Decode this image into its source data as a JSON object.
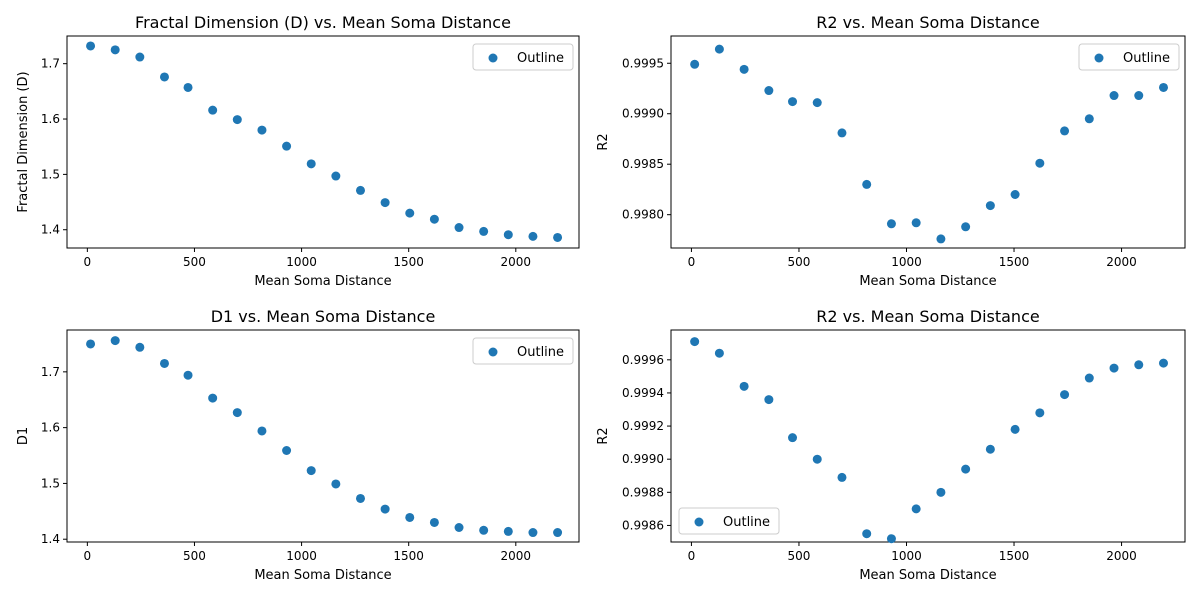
{
  "colors": {
    "marker": "#1f77b4",
    "axes": "#000000",
    "legend_edge": "#cccccc"
  },
  "chart_data": [
    {
      "type": "scatter",
      "title": "Fractal Dimension (D) vs. Mean Soma Distance",
      "xlabel": "Mean Soma Distance",
      "ylabel": "Fractal Dimension (D)",
      "xlim": [
        -95,
        2295
      ],
      "ylim": [
        1.367,
        1.75
      ],
      "xticks": [
        0,
        500,
        1000,
        1500,
        2000
      ],
      "yticks": [
        1.4,
        1.5,
        1.6,
        1.7
      ],
      "ytick_labels": [
        "1.4",
        "1.5",
        "1.6",
        "1.7"
      ],
      "legend_position": "upper-right",
      "series": [
        {
          "name": "Outline",
          "x": [
            15,
            130,
            245,
            360,
            470,
            585,
            700,
            815,
            930,
            1045,
            1160,
            1275,
            1390,
            1505,
            1620,
            1735,
            1850,
            1965,
            2080,
            2195
          ],
          "y": [
            1.732,
            1.725,
            1.712,
            1.676,
            1.657,
            1.616,
            1.599,
            1.58,
            1.551,
            1.519,
            1.497,
            1.471,
            1.449,
            1.43,
            1.419,
            1.404,
            1.397,
            1.391,
            1.388,
            1.386
          ]
        }
      ]
    },
    {
      "type": "scatter",
      "title": "R2 vs. Mean Soma Distance",
      "xlabel": "Mean Soma Distance",
      "ylabel": "R2",
      "xlim": [
        -95,
        2295
      ],
      "ylim": [
        0.99767,
        0.99977
      ],
      "xticks": [
        0,
        500,
        1000,
        1500,
        2000
      ],
      "yticks": [
        0.998,
        0.9985,
        0.999,
        0.9995
      ],
      "ytick_labels": [
        "0.9980",
        "0.9985",
        "0.9990",
        "0.9995"
      ],
      "legend_position": "upper-right",
      "series": [
        {
          "name": "Outline",
          "x": [
            15,
            130,
            245,
            360,
            470,
            585,
            700,
            815,
            930,
            1045,
            1160,
            1275,
            1390,
            1505,
            1620,
            1735,
            1850,
            1965,
            2080,
            2195
          ],
          "y": [
            0.99949,
            0.99964,
            0.99944,
            0.99923,
            0.99912,
            0.99911,
            0.99881,
            0.9983,
            0.99791,
            0.99792,
            0.99776,
            0.99788,
            0.99809,
            0.9982,
            0.99851,
            0.99883,
            0.99895,
            0.99918,
            0.99918,
            0.99926
          ]
        }
      ]
    },
    {
      "type": "scatter",
      "title": "D1 vs. Mean Soma Distance",
      "xlabel": "Mean Soma Distance",
      "ylabel": "D1",
      "xlim": [
        -95,
        2295
      ],
      "ylim": [
        1.395,
        1.775
      ],
      "xticks": [
        0,
        500,
        1000,
        1500,
        2000
      ],
      "yticks": [
        1.4,
        1.5,
        1.6,
        1.7
      ],
      "ytick_labels": [
        "1.4",
        "1.5",
        "1.6",
        "1.7"
      ],
      "legend_position": "upper-right",
      "series": [
        {
          "name": "Outline",
          "x": [
            15,
            130,
            245,
            360,
            470,
            585,
            700,
            815,
            930,
            1045,
            1160,
            1275,
            1390,
            1505,
            1620,
            1735,
            1850,
            1965,
            2080,
            2195
          ],
          "y": [
            1.75,
            1.756,
            1.744,
            1.715,
            1.694,
            1.653,
            1.627,
            1.594,
            1.559,
            1.523,
            1.499,
            1.473,
            1.454,
            1.439,
            1.43,
            1.421,
            1.416,
            1.414,
            1.412,
            1.412
          ]
        }
      ]
    },
    {
      "type": "scatter",
      "title": "R2 vs. Mean Soma Distance",
      "xlabel": "Mean Soma Distance",
      "ylabel": "R2",
      "xlim": [
        -95,
        2295
      ],
      "ylim": [
        0.9985,
        0.99978
      ],
      "xticks": [
        0,
        500,
        1000,
        1500,
        2000
      ],
      "yticks": [
        0.9986,
        0.9988,
        0.999,
        0.9992,
        0.9994,
        0.9996
      ],
      "ytick_labels": [
        "0.9986",
        "0.9988",
        "0.9990",
        "0.9992",
        "0.9994",
        "0.9996"
      ],
      "legend_position": "lower-left",
      "series": [
        {
          "name": "Outline",
          "x": [
            15,
            130,
            245,
            360,
            470,
            585,
            700,
            815,
            930,
            1045,
            1160,
            1275,
            1390,
            1505,
            1620,
            1735,
            1850,
            1965,
            2080,
            2195
          ],
          "y": [
            0.99971,
            0.99964,
            0.99944,
            0.99936,
            0.99913,
            0.999,
            0.99889,
            0.99855,
            0.99852,
            0.9987,
            0.9988,
            0.99894,
            0.99906,
            0.99918,
            0.99928,
            0.99939,
            0.99949,
            0.99955,
            0.99957,
            0.99958
          ]
        }
      ]
    }
  ]
}
